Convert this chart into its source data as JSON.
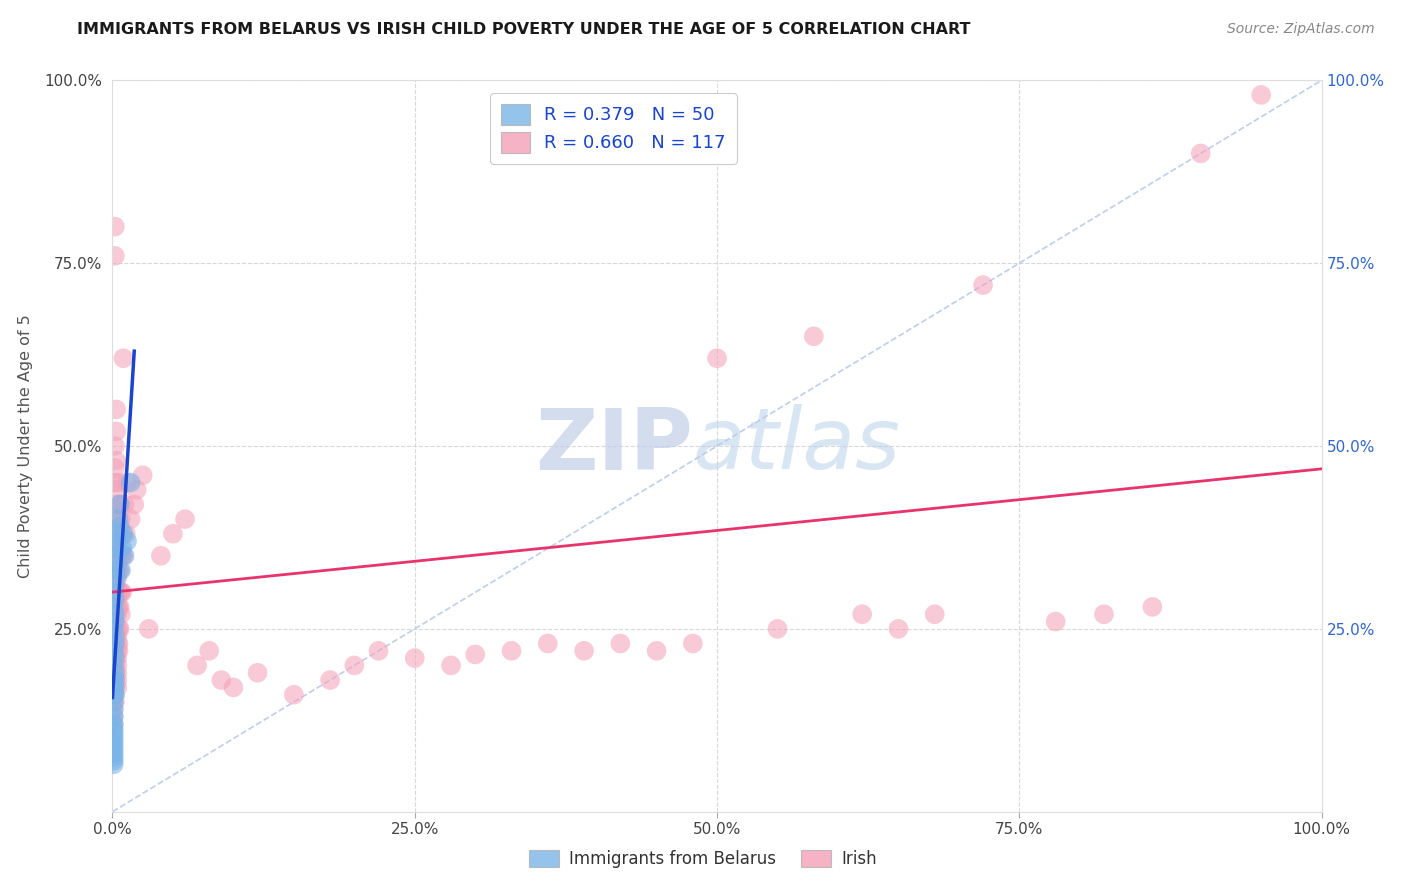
{
  "title": "IMMIGRANTS FROM BELARUS VS IRISH CHILD POVERTY UNDER THE AGE OF 5 CORRELATION CHART",
  "source": "Source: ZipAtlas.com",
  "ylabel": "Child Poverty Under the Age of 5",
  "legend_blue_label": "Immigrants from Belarus",
  "legend_pink_label": "Irish",
  "blue_color": "#7ab4e8",
  "pink_color": "#f4a0b8",
  "blue_line_color": "#1a44cc",
  "pink_line_color": "#e8336d",
  "diag_color": "#b8c8e8",
  "grid_color": "#d8d8d8",
  "blue_pts": [
    [
      0.1,
      28.0
    ],
    [
      0.1,
      30.0
    ],
    [
      0.1,
      25.0
    ],
    [
      0.1,
      22.0
    ],
    [
      0.1,
      20.0
    ],
    [
      0.1,
      18.0
    ],
    [
      0.1,
      17.0
    ],
    [
      0.1,
      16.0
    ],
    [
      0.1,
      15.0
    ],
    [
      0.1,
      14.0
    ],
    [
      0.1,
      13.0
    ],
    [
      0.1,
      12.0
    ],
    [
      0.1,
      11.5
    ],
    [
      0.1,
      11.0
    ],
    [
      0.1,
      10.5
    ],
    [
      0.1,
      10.0
    ],
    [
      0.1,
      9.5
    ],
    [
      0.1,
      9.0
    ],
    [
      0.1,
      8.5
    ],
    [
      0.1,
      8.0
    ],
    [
      0.1,
      7.5
    ],
    [
      0.1,
      7.0
    ],
    [
      0.1,
      6.5
    ],
    [
      0.2,
      31.0
    ],
    [
      0.2,
      29.0
    ],
    [
      0.2,
      27.0
    ],
    [
      0.2,
      26.0
    ],
    [
      0.2,
      24.0
    ],
    [
      0.2,
      23.0
    ],
    [
      0.2,
      21.0
    ],
    [
      0.2,
      19.0
    ],
    [
      0.2,
      18.0
    ],
    [
      0.2,
      17.0
    ],
    [
      0.2,
      16.0
    ],
    [
      0.3,
      35.0
    ],
    [
      0.3,
      33.0
    ],
    [
      0.3,
      32.0
    ],
    [
      0.3,
      34.0
    ],
    [
      0.4,
      37.0
    ],
    [
      0.4,
      36.0
    ],
    [
      0.5,
      40.0
    ],
    [
      0.5,
      38.0
    ],
    [
      0.6,
      42.0
    ],
    [
      0.6,
      39.0
    ],
    [
      0.7,
      33.0
    ],
    [
      0.8,
      36.0
    ],
    [
      0.9,
      38.0
    ],
    [
      1.0,
      35.0
    ],
    [
      1.2,
      37.0
    ],
    [
      1.5,
      45.0
    ]
  ],
  "pink_pts": [
    [
      0.1,
      38.0
    ],
    [
      0.1,
      36.0
    ],
    [
      0.1,
      32.0
    ],
    [
      0.1,
      30.0
    ],
    [
      0.1,
      27.0
    ],
    [
      0.1,
      25.0
    ],
    [
      0.1,
      23.0
    ],
    [
      0.1,
      21.0
    ],
    [
      0.1,
      20.0
    ],
    [
      0.1,
      19.0
    ],
    [
      0.1,
      18.0
    ],
    [
      0.1,
      17.0
    ],
    [
      0.1,
      16.0
    ],
    [
      0.1,
      15.0
    ],
    [
      0.1,
      14.0
    ],
    [
      0.1,
      13.0
    ],
    [
      0.1,
      12.0
    ],
    [
      0.2,
      80.0
    ],
    [
      0.2,
      76.0
    ],
    [
      0.2,
      50.0
    ],
    [
      0.2,
      47.0
    ],
    [
      0.2,
      45.0
    ],
    [
      0.2,
      40.0
    ],
    [
      0.2,
      38.0
    ],
    [
      0.2,
      37.0
    ],
    [
      0.2,
      36.0
    ],
    [
      0.2,
      35.0
    ],
    [
      0.2,
      33.0
    ],
    [
      0.2,
      32.0
    ],
    [
      0.2,
      31.0
    ],
    [
      0.2,
      30.0
    ],
    [
      0.2,
      28.0
    ],
    [
      0.2,
      27.0
    ],
    [
      0.2,
      26.0
    ],
    [
      0.2,
      25.0
    ],
    [
      0.2,
      24.0
    ],
    [
      0.2,
      23.0
    ],
    [
      0.2,
      22.0
    ],
    [
      0.2,
      21.0
    ],
    [
      0.2,
      20.0
    ],
    [
      0.2,
      19.0
    ],
    [
      0.2,
      18.0
    ],
    [
      0.2,
      17.0
    ],
    [
      0.2,
      16.0
    ],
    [
      0.2,
      15.0
    ],
    [
      0.3,
      55.0
    ],
    [
      0.3,
      52.0
    ],
    [
      0.3,
      48.0
    ],
    [
      0.3,
      44.0
    ],
    [
      0.3,
      42.0
    ],
    [
      0.4,
      40.0
    ],
    [
      0.4,
      38.0
    ],
    [
      0.4,
      36.0
    ],
    [
      0.4,
      35.0
    ],
    [
      0.4,
      33.0
    ],
    [
      0.4,
      32.0
    ],
    [
      0.4,
      30.0
    ],
    [
      0.4,
      28.0
    ],
    [
      0.4,
      27.0
    ],
    [
      0.4,
      25.0
    ],
    [
      0.4,
      24.0
    ],
    [
      0.4,
      23.0
    ],
    [
      0.4,
      22.0
    ],
    [
      0.4,
      21.0
    ],
    [
      0.4,
      20.0
    ],
    [
      0.4,
      19.0
    ],
    [
      0.4,
      18.0
    ],
    [
      0.4,
      17.0
    ],
    [
      0.5,
      45.0
    ],
    [
      0.5,
      42.0
    ],
    [
      0.5,
      38.0
    ],
    [
      0.5,
      35.0
    ],
    [
      0.5,
      33.0
    ],
    [
      0.5,
      30.0
    ],
    [
      0.5,
      28.0
    ],
    [
      0.5,
      25.0
    ],
    [
      0.5,
      23.0
    ],
    [
      0.5,
      22.0
    ],
    [
      0.6,
      42.0
    ],
    [
      0.6,
      38.0
    ],
    [
      0.6,
      35.0
    ],
    [
      0.6,
      33.0
    ],
    [
      0.6,
      30.0
    ],
    [
      0.6,
      28.0
    ],
    [
      0.6,
      25.0
    ],
    [
      0.7,
      40.0
    ],
    [
      0.7,
      38.0
    ],
    [
      0.7,
      35.0
    ],
    [
      0.7,
      30.0
    ],
    [
      0.7,
      27.0
    ],
    [
      0.8,
      38.0
    ],
    [
      0.8,
      35.0
    ],
    [
      0.8,
      30.0
    ],
    [
      0.9,
      62.0
    ],
    [
      0.9,
      35.0
    ],
    [
      1.0,
      42.0
    ],
    [
      1.1,
      38.0
    ],
    [
      1.2,
      45.0
    ],
    [
      1.5,
      40.0
    ],
    [
      1.8,
      42.0
    ],
    [
      2.0,
      44.0
    ],
    [
      2.5,
      46.0
    ],
    [
      3.0,
      25.0
    ],
    [
      4.0,
      35.0
    ],
    [
      5.0,
      38.0
    ],
    [
      6.0,
      40.0
    ],
    [
      7.0,
      20.0
    ],
    [
      8.0,
      22.0
    ],
    [
      9.0,
      18.0
    ],
    [
      10.0,
      17.0
    ],
    [
      12.0,
      19.0
    ],
    [
      15.0,
      16.0
    ],
    [
      18.0,
      18.0
    ],
    [
      20.0,
      20.0
    ],
    [
      22.0,
      22.0
    ],
    [
      25.0,
      21.0
    ],
    [
      28.0,
      20.0
    ],
    [
      30.0,
      21.5
    ],
    [
      33.0,
      22.0
    ],
    [
      36.0,
      23.0
    ],
    [
      39.0,
      22.0
    ],
    [
      42.0,
      23.0
    ],
    [
      45.0,
      22.0
    ],
    [
      48.0,
      23.0
    ],
    [
      50.0,
      62.0
    ],
    [
      55.0,
      25.0
    ],
    [
      58.0,
      65.0
    ],
    [
      62.0,
      27.0
    ],
    [
      65.0,
      25.0
    ],
    [
      68.0,
      27.0
    ],
    [
      72.0,
      72.0
    ],
    [
      78.0,
      26.0
    ],
    [
      82.0,
      27.0
    ],
    [
      86.0,
      28.0
    ],
    [
      90.0,
      90.0
    ],
    [
      95.0,
      98.0
    ]
  ],
  "xlim": [
    0.0,
    100.0
  ],
  "ylim": [
    0.0,
    100.0
  ],
  "xticks": [
    0.0,
    25.0,
    50.0,
    75.0,
    100.0
  ],
  "xticklabels": [
    "0.0%",
    "25.0%",
    "50.0%",
    "75.0%",
    "100.0%"
  ],
  "yticks": [
    25.0,
    50.0,
    75.0,
    100.0
  ],
  "yticklabels": [
    "25.0%",
    "50.0%",
    "75.0%",
    "100.0%"
  ],
  "right_yticks": [
    25.0,
    50.0,
    75.0,
    100.0
  ],
  "right_yticklabels": [
    "25.0%",
    "50.0%",
    "75.0%",
    "100.0%"
  ]
}
